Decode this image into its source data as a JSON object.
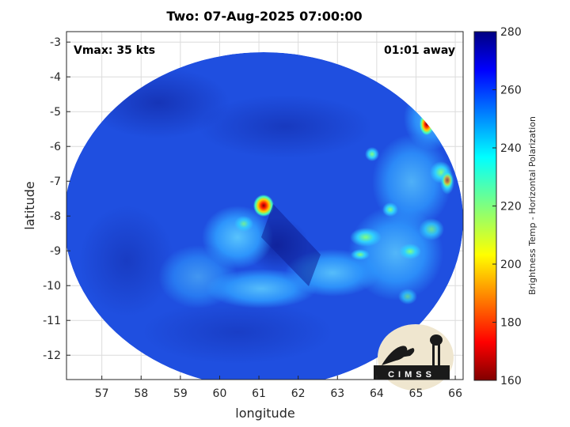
{
  "header": {
    "title": "Two: 07-Aug-2025 07:00:00"
  },
  "annotations": {
    "vmax": "Vmax: 35 kts",
    "time_away": "01:01 away"
  },
  "axes": {
    "xlabel": "longitude",
    "ylabel": "latitude",
    "xlim": [
      56.1,
      66.2
    ],
    "ylim": [
      -12.7,
      -2.7
    ],
    "xticks": [
      "57",
      "58",
      "59",
      "60",
      "61",
      "62",
      "63",
      "64",
      "65",
      "66"
    ],
    "yticks": [
      "-3",
      "-4",
      "-5",
      "-6",
      "-7",
      "-8",
      "-9",
      "-10",
      "-11",
      "-12"
    ]
  },
  "colorbar": {
    "title": "Brightness Temp - Horizontal Polarization",
    "ticks": [
      "280",
      "260",
      "240",
      "220",
      "200",
      "180",
      "160"
    ],
    "range": [
      160,
      280
    ],
    "colormap": "jet"
  },
  "logo": {
    "text": "CIMSS"
  },
  "colors": {
    "background": "#1f4fe0",
    "warm_deep": "#1226a8",
    "band": "#2f9cff"
  }
}
